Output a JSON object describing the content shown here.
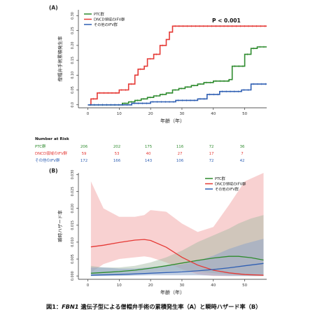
{
  "colors": {
    "ptc": "#2e8b2e",
    "dncd": "#e53935",
    "other": "#2f5fb3",
    "band_dncd": "#f4b3b3",
    "band_ptc": "#9fb7a0",
    "band_other": "#8fa6c8",
    "axis": "#222222"
  },
  "chart_data": [
    {
      "panel": "(A)",
      "type": "line",
      "step": true,
      "ylabel": "僧帽弁手術累積発生率",
      "xlabel": "年齢（年）",
      "xlim": [
        -3,
        57
      ],
      "ylim": [
        -0.01,
        0.32
      ],
      "x_ticks": [
        0,
        10,
        20,
        30,
        40,
        50
      ],
      "y_ticks": [
        0.0,
        0.05,
        0.1,
        0.15,
        0.2,
        0.25,
        0.3
      ],
      "y_tick_labels": [
        "0.0",
        "0.05",
        "0.10",
        "0.15",
        "0.20",
        "0.25",
        "0.30"
      ],
      "annotation": "P < 0.001",
      "series": [
        {
          "name": "PTC群",
          "color_key": "ptc",
          "points": [
            [
              0,
              0
            ],
            [
              11,
              0.005
            ],
            [
              13,
              0.01
            ],
            [
              15,
              0.015
            ],
            [
              17,
              0.02
            ],
            [
              19,
              0.025
            ],
            [
              21,
              0.03
            ],
            [
              23,
              0.035
            ],
            [
              25,
              0.04
            ],
            [
              27,
              0.05
            ],
            [
              29,
              0.055
            ],
            [
              31,
              0.06
            ],
            [
              33,
              0.065
            ],
            [
              35,
              0.07
            ],
            [
              37,
              0.075
            ],
            [
              40,
              0.08
            ],
            [
              45,
              0.085
            ],
            [
              46,
              0.13
            ],
            [
              50,
              0.17
            ],
            [
              52,
              0.19
            ],
            [
              54,
              0.195
            ],
            [
              57,
              0.195
            ]
          ]
        },
        {
          "name": "DNCD領域のIFV群",
          "color_key": "dncd",
          "points": [
            [
              0,
              0
            ],
            [
              1,
              0.02
            ],
            [
              3,
              0.04
            ],
            [
              10,
              0.05
            ],
            [
              13,
              0.07
            ],
            [
              15,
              0.1
            ],
            [
              16,
              0.12
            ],
            [
              18,
              0.13
            ],
            [
              19,
              0.155
            ],
            [
              21,
              0.17
            ],
            [
              23,
              0.2
            ],
            [
              25,
              0.22
            ],
            [
              26,
              0.245
            ],
            [
              27,
              0.265
            ],
            [
              57,
              0.265
            ]
          ]
        },
        {
          "name": "その他のIFV群",
          "color_key": "other",
          "points": [
            [
              0,
              0
            ],
            [
              14,
              0.005
            ],
            [
              20,
              0.01
            ],
            [
              28,
              0.015
            ],
            [
              35,
              0.02
            ],
            [
              38,
              0.035
            ],
            [
              42,
              0.045
            ],
            [
              49,
              0.05
            ],
            [
              52,
              0.07
            ],
            [
              57,
              0.07
            ]
          ]
        }
      ]
    },
    {
      "panel": "(B)",
      "type": "line",
      "ylabel": "瞬時ハザード率",
      "xlabel": "年齢（年）",
      "xlim": [
        -3,
        57
      ],
      "ylim": [
        -0.001,
        0.0305
      ],
      "x_ticks": [
        0,
        10,
        20,
        30,
        40,
        50
      ],
      "y_ticks": [
        0.0,
        0.005,
        0.01,
        0.015,
        0.02,
        0.025,
        0.03
      ],
      "y_tick_labels": [
        "0.000",
        "0.005",
        "0.010",
        "0.015",
        "0.020",
        "0.025",
        "0.030"
      ],
      "series": [
        {
          "name": "PTC群",
          "color_key": "ptc",
          "x": [
            1,
            5,
            10,
            15,
            20,
            25,
            30,
            35,
            40,
            45,
            48,
            52,
            56
          ],
          "y": [
            0.0008,
            0.001,
            0.0013,
            0.0017,
            0.0023,
            0.003,
            0.0038,
            0.0046,
            0.0053,
            0.0058,
            0.0058,
            0.0054,
            0.0047
          ],
          "lower": [
            0.0,
            0.0002,
            0.0005,
            0.0008,
            0.001,
            0.0013,
            0.0015,
            0.0013,
            0.0008,
            0.0004,
            0.0002,
            0.0,
            0.0
          ],
          "upper": [
            0.003,
            0.0025,
            0.0025,
            0.003,
            0.004,
            0.0055,
            0.0075,
            0.01,
            0.012,
            0.014,
            0.0155,
            0.017,
            0.018
          ]
        },
        {
          "name": "DNCD領域のIFV群",
          "color_key": "dncd",
          "x": [
            1,
            5,
            10,
            15,
            18,
            20,
            25,
            30,
            35,
            40,
            45,
            50,
            56
          ],
          "y": [
            0.0086,
            0.0091,
            0.0099,
            0.0106,
            0.0108,
            0.0105,
            0.0085,
            0.0055,
            0.0032,
            0.0017,
            0.0009,
            0.0004,
            0.0002
          ],
          "lower": [
            0.001,
            0.0035,
            0.005,
            0.0055,
            0.0058,
            0.0055,
            0.004,
            0.002,
            0.0005,
            0.0,
            0.0,
            0.0,
            0.0
          ],
          "upper": [
            0.028,
            0.02,
            0.0175,
            0.0175,
            0.018,
            0.0195,
            0.019,
            0.0155,
            0.013,
            0.0145,
            0.021,
            0.028,
            0.031
          ]
        },
        {
          "name": "その他のIFV群",
          "color_key": "other",
          "x": [
            1,
            5,
            10,
            15,
            20,
            25,
            30,
            35,
            40,
            45,
            50,
            56
          ],
          "y": [
            0.0002,
            0.0003,
            0.0004,
            0.0006,
            0.0008,
            0.001,
            0.0012,
            0.0015,
            0.0019,
            0.0024,
            0.003,
            0.0037
          ],
          "lower": [
            0.0,
            0.0,
            0.0,
            0.0001,
            0.0002,
            0.0002,
            0.0002,
            0.0002,
            0.0001,
            0.0,
            0.0,
            0.0
          ],
          "upper": [
            0.0025,
            0.0025,
            0.0022,
            0.0022,
            0.0026,
            0.003,
            0.0034,
            0.0045,
            0.006,
            0.008,
            0.0095,
            0.011
          ]
        }
      ]
    }
  ],
  "risk_table": {
    "title": "Number at Risk",
    "rows": [
      {
        "label": "PTC群",
        "color_key": "ptc",
        "values": [
          "206",
          "202",
          "175",
          "116",
          "72",
          "36"
        ]
      },
      {
        "label": "DNCD領域のIFV群",
        "color_key": "dncd",
        "values": [
          "59",
          "53",
          "40",
          "27",
          "17",
          "7"
        ]
      },
      {
        "label": "その他のIFV群",
        "color_key": "other",
        "values": [
          "172",
          "166",
          "143",
          "106",
          "72",
          "42"
        ]
      }
    ]
  },
  "caption": {
    "prefix": "図1：",
    "gene": "FBN1",
    "text": " 遺伝子型による僧帽弁手術の累積発生率（A）と瞬時ハザード率（B）"
  }
}
